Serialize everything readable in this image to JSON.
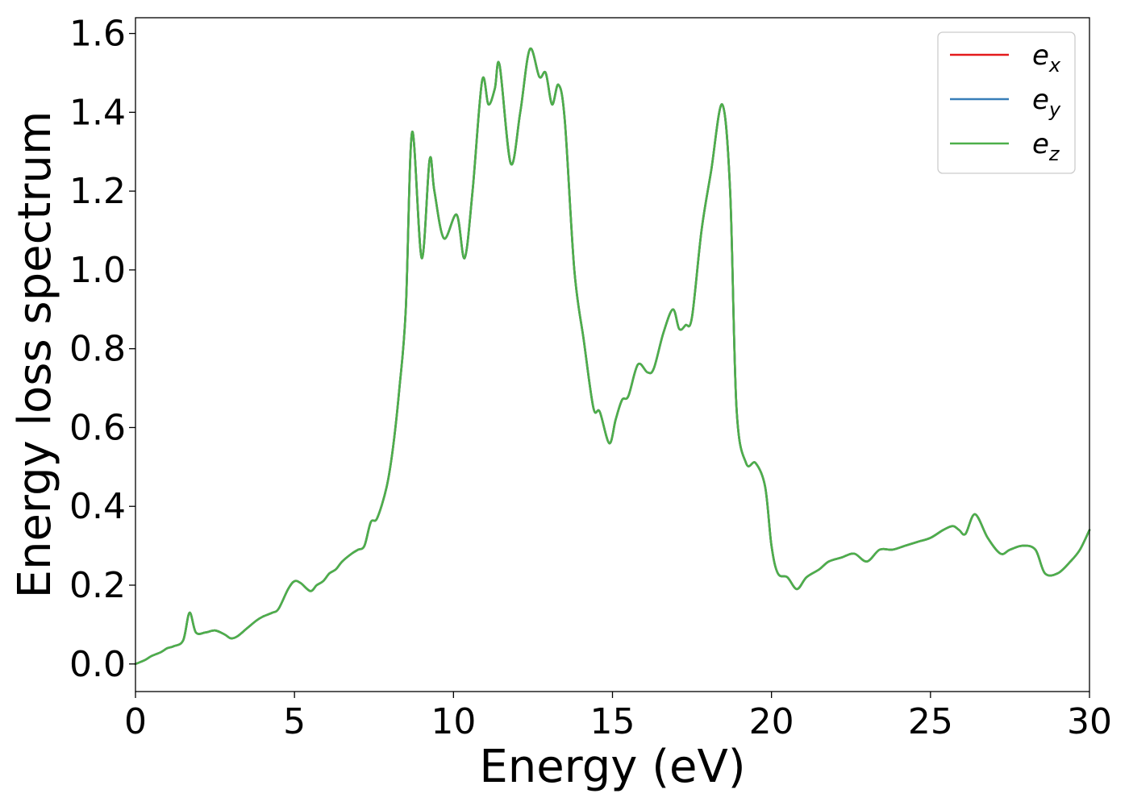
{
  "chart_data": {
    "type": "line",
    "title": "",
    "xlabel": "Energy (eV)",
    "ylabel": "Energy loss spectrum",
    "xlim": [
      0,
      30
    ],
    "ylim": [
      -0.07,
      1.64
    ],
    "xticks": [
      0,
      5,
      10,
      15,
      20,
      25,
      30
    ],
    "xtick_labels": [
      "0",
      "5",
      "10",
      "15",
      "20",
      "25",
      "30"
    ],
    "yticks": [
      0.0,
      0.2,
      0.4,
      0.6,
      0.8,
      1.0,
      1.2,
      1.4,
      1.6
    ],
    "ytick_labels": [
      "0.0",
      "0.2",
      "0.4",
      "0.6",
      "0.8",
      "1.0",
      "1.2",
      "1.4",
      "1.6"
    ],
    "grid": false,
    "legend_position": "top-right",
    "x": [
      0,
      0.3,
      0.5,
      0.8,
      1.0,
      1.2,
      1.5,
      1.7,
      1.9,
      2.2,
      2.5,
      2.8,
      3.0,
      3.2,
      3.5,
      3.8,
      4.0,
      4.3,
      4.5,
      4.8,
      5.0,
      5.2,
      5.5,
      5.7,
      5.9,
      6.1,
      6.3,
      6.5,
      6.8,
      7.0,
      7.2,
      7.4,
      7.6,
      7.9,
      8.1,
      8.3,
      8.5,
      8.7,
      9.0,
      9.25,
      9.4,
      9.7,
      10.1,
      10.35,
      10.6,
      10.9,
      11.1,
      11.3,
      11.45,
      11.8,
      12.1,
      12.4,
      12.7,
      12.9,
      13.1,
      13.3,
      13.5,
      13.8,
      14.1,
      14.4,
      14.6,
      14.9,
      15.1,
      15.3,
      15.5,
      15.8,
      16.1,
      16.3,
      16.6,
      16.9,
      17.1,
      17.3,
      17.5,
      17.8,
      18.1,
      18.45,
      18.7,
      18.9,
      19.2,
      19.5,
      19.8,
      20.0,
      20.2,
      20.5,
      20.8,
      21.1,
      21.5,
      21.8,
      22.2,
      22.6,
      23.0,
      23.4,
      23.8,
      24.2,
      24.6,
      25.0,
      25.4,
      25.7,
      25.9,
      26.1,
      26.4,
      26.8,
      27.2,
      27.5,
      27.9,
      28.3,
      28.6,
      29.0,
      29.4,
      29.7,
      30.0
    ],
    "series": [
      {
        "name": "e_x",
        "color": "#e41a1c",
        "values": [
          0.0,
          0.01,
          0.02,
          0.03,
          0.04,
          0.045,
          0.06,
          0.13,
          0.08,
          0.08,
          0.085,
          0.075,
          0.065,
          0.07,
          0.09,
          0.11,
          0.12,
          0.13,
          0.14,
          0.19,
          0.21,
          0.205,
          0.185,
          0.2,
          0.21,
          0.23,
          0.24,
          0.26,
          0.28,
          0.29,
          0.3,
          0.36,
          0.37,
          0.45,
          0.55,
          0.7,
          0.9,
          1.35,
          1.03,
          1.28,
          1.2,
          1.08,
          1.14,
          1.03,
          1.2,
          1.48,
          1.42,
          1.46,
          1.52,
          1.27,
          1.4,
          1.56,
          1.49,
          1.5,
          1.42,
          1.47,
          1.38,
          1.0,
          0.82,
          0.65,
          0.64,
          0.56,
          0.62,
          0.67,
          0.68,
          0.76,
          0.74,
          0.75,
          0.84,
          0.9,
          0.85,
          0.86,
          0.88,
          1.1,
          1.25,
          1.42,
          1.2,
          0.65,
          0.51,
          0.51,
          0.45,
          0.3,
          0.23,
          0.22,
          0.19,
          0.22,
          0.24,
          0.26,
          0.27,
          0.28,
          0.26,
          0.29,
          0.29,
          0.3,
          0.31,
          0.32,
          0.34,
          0.35,
          0.34,
          0.33,
          0.38,
          0.32,
          0.28,
          0.29,
          0.3,
          0.29,
          0.23,
          0.23,
          0.26,
          0.29,
          0.34
        ]
      },
      {
        "name": "e_y",
        "color": "#377eb8",
        "values": [
          0.0,
          0.01,
          0.02,
          0.03,
          0.04,
          0.045,
          0.06,
          0.13,
          0.08,
          0.08,
          0.085,
          0.075,
          0.065,
          0.07,
          0.09,
          0.11,
          0.12,
          0.13,
          0.14,
          0.19,
          0.21,
          0.205,
          0.185,
          0.2,
          0.21,
          0.23,
          0.24,
          0.26,
          0.28,
          0.29,
          0.3,
          0.36,
          0.37,
          0.45,
          0.55,
          0.7,
          0.9,
          1.35,
          1.03,
          1.28,
          1.2,
          1.08,
          1.14,
          1.03,
          1.2,
          1.48,
          1.42,
          1.46,
          1.52,
          1.27,
          1.4,
          1.56,
          1.49,
          1.5,
          1.42,
          1.47,
          1.38,
          1.0,
          0.82,
          0.65,
          0.64,
          0.56,
          0.62,
          0.67,
          0.68,
          0.76,
          0.74,
          0.75,
          0.84,
          0.9,
          0.85,
          0.86,
          0.88,
          1.1,
          1.25,
          1.42,
          1.2,
          0.65,
          0.51,
          0.51,
          0.45,
          0.3,
          0.23,
          0.22,
          0.19,
          0.22,
          0.24,
          0.26,
          0.27,
          0.28,
          0.26,
          0.29,
          0.29,
          0.3,
          0.31,
          0.32,
          0.34,
          0.35,
          0.34,
          0.33,
          0.38,
          0.32,
          0.28,
          0.29,
          0.3,
          0.29,
          0.23,
          0.23,
          0.26,
          0.29,
          0.34
        ]
      },
      {
        "name": "e_z",
        "color": "#4daf4a",
        "values": [
          0.0,
          0.01,
          0.02,
          0.03,
          0.04,
          0.045,
          0.06,
          0.13,
          0.08,
          0.08,
          0.085,
          0.075,
          0.065,
          0.07,
          0.09,
          0.11,
          0.12,
          0.13,
          0.14,
          0.19,
          0.21,
          0.205,
          0.185,
          0.2,
          0.21,
          0.23,
          0.24,
          0.26,
          0.28,
          0.29,
          0.3,
          0.36,
          0.37,
          0.45,
          0.55,
          0.7,
          0.9,
          1.35,
          1.03,
          1.28,
          1.2,
          1.08,
          1.14,
          1.03,
          1.2,
          1.48,
          1.42,
          1.46,
          1.52,
          1.27,
          1.4,
          1.56,
          1.49,
          1.5,
          1.42,
          1.47,
          1.38,
          1.0,
          0.82,
          0.65,
          0.64,
          0.56,
          0.62,
          0.67,
          0.68,
          0.76,
          0.74,
          0.75,
          0.84,
          0.9,
          0.85,
          0.86,
          0.88,
          1.1,
          1.25,
          1.42,
          1.2,
          0.65,
          0.51,
          0.51,
          0.45,
          0.3,
          0.23,
          0.22,
          0.19,
          0.22,
          0.24,
          0.26,
          0.27,
          0.28,
          0.26,
          0.29,
          0.29,
          0.3,
          0.31,
          0.32,
          0.34,
          0.35,
          0.34,
          0.33,
          0.38,
          0.32,
          0.28,
          0.29,
          0.3,
          0.29,
          0.23,
          0.23,
          0.26,
          0.29,
          0.34
        ]
      }
    ],
    "legend": [
      {
        "base": "e",
        "sub": "x",
        "color": "#e41a1c"
      },
      {
        "base": "e",
        "sub": "y",
        "color": "#377eb8"
      },
      {
        "base": "e",
        "sub": "z",
        "color": "#4daf4a"
      }
    ]
  }
}
